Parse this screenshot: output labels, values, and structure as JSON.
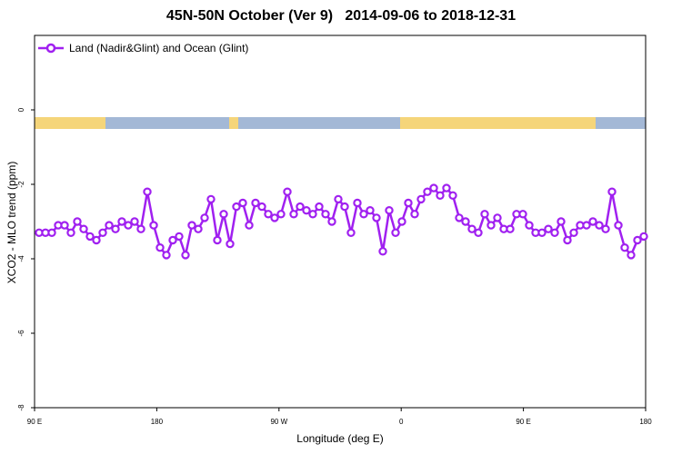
{
  "chart_data": {
    "type": "line",
    "title": "45N-50N October (Ver 9)   2014-09-06 to 2018-12-31",
    "xlabel": "Longitude (deg E)",
    "ylabel": "XCO2 - MLO trend (ppm)",
    "x_ticks": [
      {
        "pos": 0,
        "label": "90 E"
      },
      {
        "pos": 1,
        "label": "180"
      },
      {
        "pos": 2,
        "label": "90 W"
      },
      {
        "pos": 3,
        "label": "0"
      },
      {
        "pos": 4,
        "label": "90 E"
      },
      {
        "pos": 5,
        "label": "180"
      }
    ],
    "ylim": [
      -8,
      2
    ],
    "y_ticks": [
      0,
      -2,
      -4,
      -6,
      -8
    ],
    "legend": {
      "location": "top-left",
      "label": "Land (Nadir&Glint) and Ocean (Glint)"
    },
    "colors": {
      "series": "#a020f0",
      "land": "#f5d57a",
      "ocean": "#a3b8d6"
    },
    "series": [
      {
        "name": "Land (Nadir&Glint) and Ocean (Glint)",
        "values": [
          -3.3,
          -3.3,
          -3.3,
          -3.1,
          -3.1,
          -3.3,
          -3.0,
          -3.2,
          -3.4,
          -3.5,
          -3.3,
          -3.1,
          -3.2,
          -3.0,
          -3.1,
          -3.0,
          -3.2,
          -2.2,
          -3.1,
          -3.7,
          -3.9,
          -3.5,
          -3.4,
          -3.9,
          -3.1,
          -3.2,
          -2.9,
          -2.4,
          -3.5,
          -2.8,
          -3.6,
          -2.6,
          -2.5,
          -3.1,
          -2.5,
          -2.6,
          -2.8,
          -2.9,
          -2.8,
          -2.2,
          -2.8,
          -2.6,
          -2.7,
          -2.8,
          -2.6,
          -2.8,
          -3.0,
          -2.4,
          -2.6,
          -3.3,
          -2.5,
          -2.8,
          -2.7,
          -2.9,
          -3.8,
          -2.7,
          -3.3,
          -3.0,
          -2.5,
          -2.8,
          -2.4,
          -2.2,
          -2.1,
          -2.3,
          -2.1,
          -2.3,
          -2.9,
          -3.0,
          -3.2,
          -3.3,
          -2.8,
          -3.1,
          -2.9,
          -3.2,
          -3.2,
          -2.8,
          -2.8,
          -3.1,
          -3.3,
          -3.3,
          -3.2,
          -3.3,
          -3.0,
          -3.5,
          -3.3,
          -3.1,
          -3.1,
          -3.0,
          -3.1,
          -3.2,
          -2.2,
          -3.1,
          -3.7,
          -3.9,
          -3.5,
          -3.4
        ]
      }
    ]
  }
}
